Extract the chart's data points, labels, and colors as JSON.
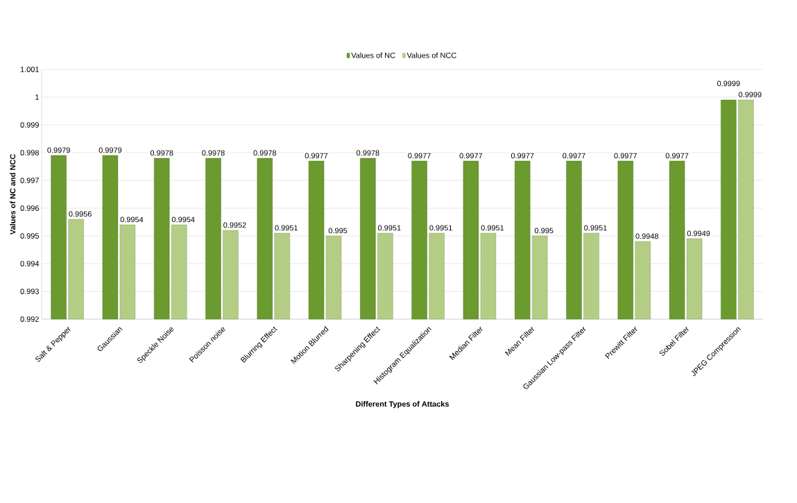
{
  "chart_data": {
    "type": "bar",
    "xlabel": "Different Types of Attacks",
    "ylabel": "Values of NC and NCC",
    "categories": [
      "Salt & Pepper",
      "Gaussian",
      "Speckle Noise",
      "Poisson noise",
      "Blurring Effect",
      "Motion Blurred",
      "Sharpening Effect",
      "Histogram Equalization",
      "Median Filter",
      "Mean Filter",
      "Gaussian Low-pass Filter",
      "Prewitt Filter",
      "Sobel Filter",
      "JPEG Compression"
    ],
    "series": [
      {
        "name": "Values of NC",
        "color": "#6b9a2e",
        "values": [
          0.9979,
          0.9979,
          0.9978,
          0.9978,
          0.9978,
          0.9977,
          0.9978,
          0.9977,
          0.9977,
          0.9977,
          0.9977,
          0.9977,
          0.9977,
          0.9999
        ],
        "value_labels": [
          "0.9979",
          "0.9979",
          "0.9978",
          "0.9978",
          "0.9978",
          "0.9977",
          "0.9978",
          "0.9977",
          "0.9977",
          "0.9977",
          "0.9977",
          "0.9977",
          "0.9977",
          "0.9999"
        ]
      },
      {
        "name": "Values of NCC",
        "color": "#b3cd85",
        "values": [
          0.9956,
          0.9954,
          0.9954,
          0.9952,
          0.9951,
          0.995,
          0.9951,
          0.9951,
          0.9951,
          0.995,
          0.9951,
          0.9948,
          0.9949,
          0.9999
        ],
        "value_labels": [
          "0.9956",
          "0.9954",
          "0.9954",
          "0.9952",
          "0.9951",
          "0.995",
          "0.9951",
          "0.9951",
          "0.9951",
          "0.995",
          "0.9951",
          "0.9948",
          "0.9949",
          "0.9999"
        ]
      }
    ],
    "ylim": [
      0.992,
      1.001
    ],
    "yticks": [
      0.992,
      0.993,
      0.994,
      0.995,
      0.996,
      0.997,
      0.998,
      0.999,
      1,
      1.001
    ],
    "grid": "y",
    "legend": "top"
  }
}
